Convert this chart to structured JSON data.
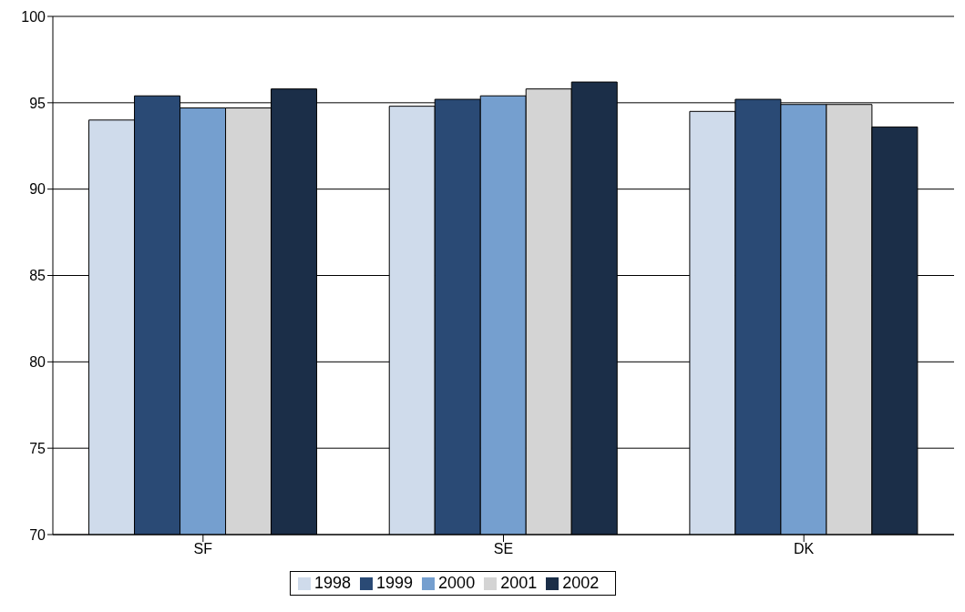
{
  "chart_data": {
    "type": "bar",
    "categories": [
      "SF",
      "SE",
      "DK"
    ],
    "series": [
      {
        "name": "1998",
        "color": "#cfdbeb",
        "values": [
          94.0,
          94.8,
          94.5
        ]
      },
      {
        "name": "1999",
        "color": "#2a4a75",
        "values": [
          95.4,
          95.2,
          95.2
        ]
      },
      {
        "name": "2000",
        "color": "#759fcf",
        "values": [
          94.7,
          95.4,
          94.9
        ]
      },
      {
        "name": "2001",
        "color": "#d4d4d4",
        "values": [
          94.7,
          95.8,
          94.9
        ]
      },
      {
        "name": "2002",
        "color": "#1b2e48",
        "values": [
          95.8,
          96.2,
          93.6
        ]
      }
    ],
    "ylim": [
      70,
      100
    ],
    "yticks": [
      70,
      75,
      80,
      85,
      90,
      95,
      100
    ],
    "grid": "y",
    "legend": "bottom"
  }
}
